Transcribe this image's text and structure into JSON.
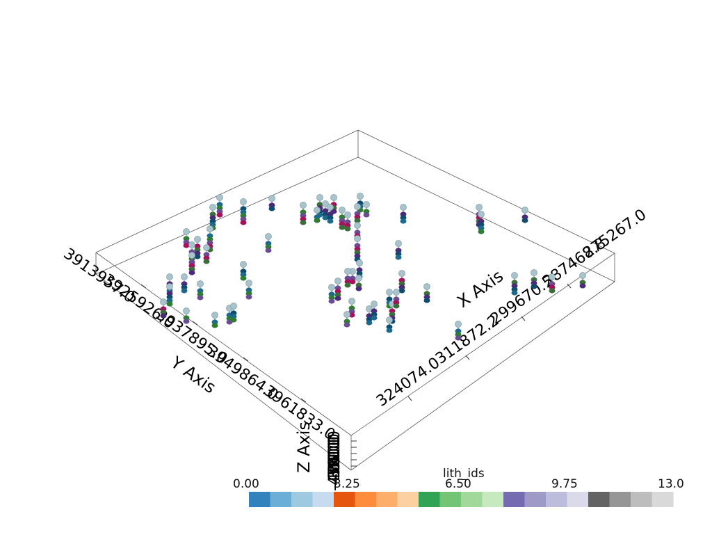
{
  "scene": {
    "background": "#ffffff",
    "axes": {
      "x": {
        "title": "X Axis",
        "ticks": [
          "324074.0",
          "311872.2",
          "299670.5",
          "287468.8",
          "275267.0"
        ]
      },
      "y": {
        "title": "Y Axis",
        "ticks": [
          "3913957.0",
          "3925926.0",
          "3937895.0",
          "3949864.0",
          "3961833.0"
        ]
      },
      "z": {
        "title": "Z Axis",
        "ticks": [
          "-450.0",
          "-400.0",
          "-350.0",
          "-300.0",
          "-250.0"
        ]
      }
    }
  },
  "colorbar": {
    "title": "lith_ids",
    "labels": [
      "0.00",
      "3.25",
      "6.50",
      "9.75",
      "13.0"
    ],
    "colors": [
      "#3182bd",
      "#6baed6",
      "#9ecae1",
      "#c6dbef",
      "#e6550d",
      "#fd8d3c",
      "#fdae6b",
      "#fdd0a2",
      "#31a354",
      "#74c476",
      "#a1d99b",
      "#c7e9c0",
      "#756bb1",
      "#9e9ac8",
      "#bcbddc",
      "#dadaeb",
      "#636363",
      "#969696",
      "#bdbdbd",
      "#d9d9d9"
    ]
  },
  "boreholes": {
    "cap_color": "#a9c3cc",
    "layer_colors": [
      "#0f4c6e",
      "#1d6a8c",
      "#2e7d32",
      "#6a4c93",
      "#a3125a",
      "#3b6e3b",
      "#4b2a7a"
    ]
  }
}
